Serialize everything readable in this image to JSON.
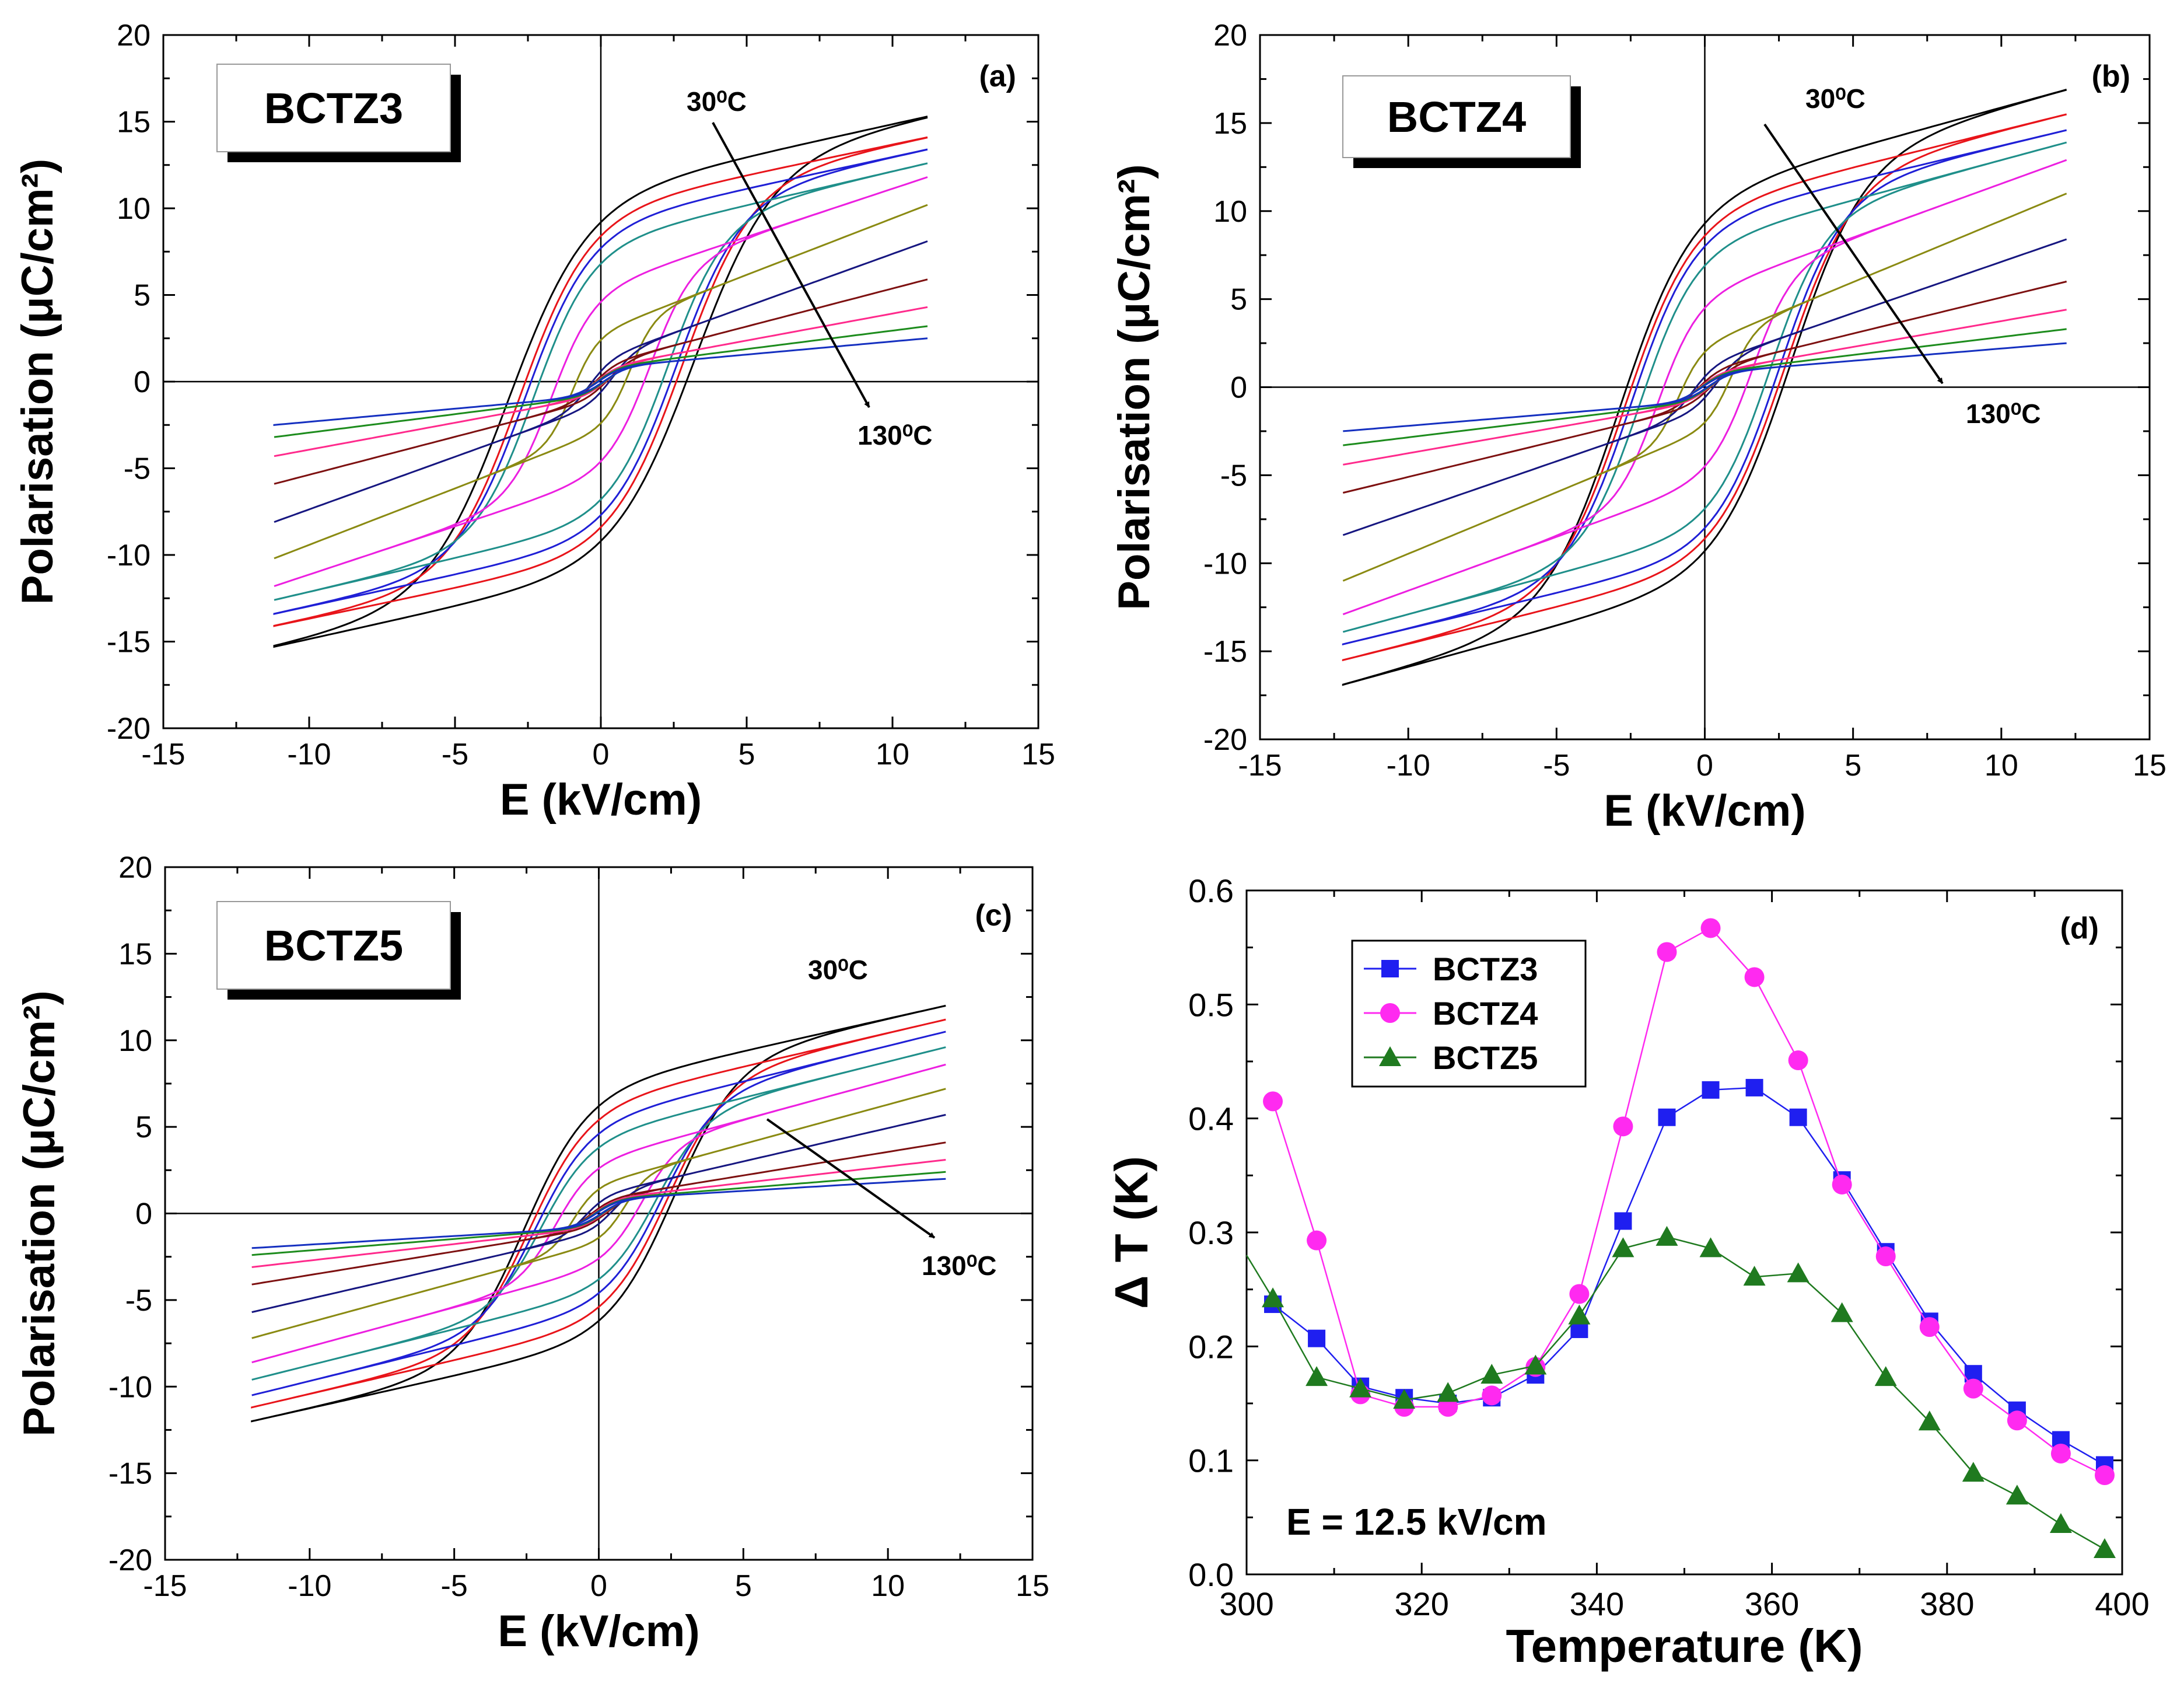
{
  "chart_data": [
    {
      "panel": "a",
      "type": "line",
      "panel_label": "(a)",
      "sample_label": "BCTZ3",
      "xlabel": "E (kV/cm)",
      "ylabel": "Polarisation (μC/cm²)",
      "xlim": [
        -15,
        15
      ],
      "ylim": [
        -20,
        20
      ],
      "x_ticks": [
        -15,
        -10,
        -5,
        0,
        5,
        10,
        15
      ],
      "y_ticks": [
        -20,
        -15,
        -10,
        -5,
        0,
        5,
        10,
        15,
        20
      ],
      "arrow_start_label": "30⁰C",
      "arrow_end_label": "130⁰C",
      "Emax": 11.2,
      "loops": [
        {
          "color": "#000000",
          "Pmax": 15.3,
          "Pr": 9.2,
          "Ec": 3.2
        },
        {
          "color": "#e8141a",
          "Pmax": 14.1,
          "Pr": 8.4,
          "Ec": 2.8
        },
        {
          "color": "#1f1fd6",
          "Pmax": 13.4,
          "Pr": 7.7,
          "Ec": 2.6
        },
        {
          "color": "#1f8f8a",
          "Pmax": 12.6,
          "Pr": 6.8,
          "Ec": 2.3
        },
        {
          "color": "#ec1fe0",
          "Pmax": 11.8,
          "Pr": 4.6,
          "Ec": 1.7
        },
        {
          "color": "#8a8a12",
          "Pmax": 10.2,
          "Pr": 2.4,
          "Ec": 1.0
        },
        {
          "color": "#161680",
          "Pmax": 8.1,
          "Pr": 0.6,
          "Ec": 0.4
        },
        {
          "color": "#7d1010",
          "Pmax": 5.9,
          "Pr": 0.3,
          "Ec": 0.25
        },
        {
          "color": "#ff2a8c",
          "Pmax": 4.3,
          "Pr": 0.2,
          "Ec": 0.2
        },
        {
          "color": "#1d8c1d",
          "Pmax": 3.2,
          "Pr": 0.15,
          "Ec": 0.15
        },
        {
          "color": "#1530c0",
          "Pmax": 2.5,
          "Pr": 0.1,
          "Ec": 0.1
        }
      ]
    },
    {
      "panel": "b",
      "type": "line",
      "panel_label": "(b)",
      "sample_label": "BCTZ4",
      "xlabel": "E (kV/cm)",
      "ylabel": "Polarisation (μC/cm²)",
      "xlim": [
        -15,
        15
      ],
      "ylim": [
        -20,
        20
      ],
      "x_ticks": [
        -15,
        -10,
        -5,
        0,
        5,
        10,
        15
      ],
      "y_ticks": [
        -20,
        -15,
        -10,
        -5,
        0,
        5,
        10,
        15,
        20
      ],
      "arrow_start_label": "30⁰C",
      "arrow_end_label": "130⁰C",
      "Emax": 12.2,
      "loops": [
        {
          "color": "#000000",
          "Pmax": 16.9,
          "Pr": 9.3,
          "Ec": 2.9
        },
        {
          "color": "#e8141a",
          "Pmax": 15.5,
          "Pr": 8.6,
          "Ec": 2.7
        },
        {
          "color": "#1f1fd6",
          "Pmax": 14.6,
          "Pr": 8.0,
          "Ec": 2.5
        },
        {
          "color": "#1f8f8a",
          "Pmax": 13.9,
          "Pr": 6.9,
          "Ec": 2.2
        },
        {
          "color": "#ec1fe0",
          "Pmax": 12.9,
          "Pr": 4.5,
          "Ec": 1.6
        },
        {
          "color": "#8a8a12",
          "Pmax": 11.0,
          "Pr": 2.0,
          "Ec": 0.9
        },
        {
          "color": "#161680",
          "Pmax": 8.4,
          "Pr": 0.6,
          "Ec": 0.4
        },
        {
          "color": "#7d1010",
          "Pmax": 6.0,
          "Pr": 0.3,
          "Ec": 0.25
        },
        {
          "color": "#ff2a8c",
          "Pmax": 4.4,
          "Pr": 0.2,
          "Ec": 0.2
        },
        {
          "color": "#1d8c1d",
          "Pmax": 3.3,
          "Pr": 0.15,
          "Ec": 0.15
        },
        {
          "color": "#1530c0",
          "Pmax": 2.5,
          "Pr": 0.1,
          "Ec": 0.1
        }
      ]
    },
    {
      "panel": "c",
      "type": "line",
      "panel_label": "(c)",
      "sample_label": "BCTZ5",
      "xlabel": "E (kV/cm)",
      "ylabel": "Polarisation (μC/cm²)",
      "xlim": [
        -15,
        15
      ],
      "ylim": [
        -20,
        20
      ],
      "x_ticks": [
        -15,
        -10,
        -5,
        0,
        5,
        10,
        15
      ],
      "y_ticks": [
        -20,
        -15,
        -10,
        -5,
        0,
        5,
        10,
        15,
        20
      ],
      "arrow_start_label": "30⁰C",
      "arrow_end_label": "130⁰C",
      "Emax": 12.0,
      "loops": [
        {
          "color": "#000000",
          "Pmax": 12.0,
          "Pr": 6.2,
          "Ec": 2.6
        },
        {
          "color": "#e8141a",
          "Pmax": 11.2,
          "Pr": 5.4,
          "Ec": 2.4
        },
        {
          "color": "#1f1fd6",
          "Pmax": 10.5,
          "Pr": 4.6,
          "Ec": 2.2
        },
        {
          "color": "#1f8f8a",
          "Pmax": 9.6,
          "Pr": 3.8,
          "Ec": 2.0
        },
        {
          "color": "#ec1fe0",
          "Pmax": 8.6,
          "Pr": 2.6,
          "Ec": 1.5
        },
        {
          "color": "#8a8a12",
          "Pmax": 7.2,
          "Pr": 1.4,
          "Ec": 0.9
        },
        {
          "color": "#161680",
          "Pmax": 5.7,
          "Pr": 0.6,
          "Ec": 0.5
        },
        {
          "color": "#7d1010",
          "Pmax": 4.1,
          "Pr": 0.3,
          "Ec": 0.3
        },
        {
          "color": "#ff2a8c",
          "Pmax": 3.1,
          "Pr": 0.2,
          "Ec": 0.2
        },
        {
          "color": "#1d8c1d",
          "Pmax": 2.4,
          "Pr": 0.15,
          "Ec": 0.15
        },
        {
          "color": "#1530c0",
          "Pmax": 2.0,
          "Pr": 0.1,
          "Ec": 0.1
        }
      ]
    },
    {
      "panel": "d",
      "type": "line",
      "panel_label": "(d)",
      "xlabel": "Temperature (K)",
      "ylabel": "Δ T (K)",
      "xlim": [
        300,
        400
      ],
      "ylim": [
        0.0,
        0.6
      ],
      "x_ticks": [
        300,
        320,
        340,
        360,
        380,
        400
      ],
      "y_ticks": [
        0.0,
        0.1,
        0.2,
        0.3,
        0.4,
        0.5,
        0.6
      ],
      "y_tick_labels": [
        "0.0",
        "0.1",
        "0.2",
        "0.3",
        "0.4",
        "0.5",
        "0.6"
      ],
      "annotation": "E = 12.5 kV/cm",
      "legend_position": "top-left",
      "x": [
        303,
        308,
        313,
        318,
        323,
        328,
        333,
        338,
        343,
        348,
        353,
        358,
        363,
        368,
        373,
        378,
        383,
        388,
        393,
        398
      ],
      "series": [
        {
          "name": "BCTZ3",
          "color": "#1f1ff0",
          "marker": "square",
          "values": [
            0.237,
            0.207,
            0.165,
            0.155,
            0.15,
            0.155,
            0.175,
            0.215,
            0.31,
            0.401,
            0.425,
            0.427,
            0.401,
            0.346,
            0.283,
            0.222,
            0.176,
            0.144,
            0.118,
            0.096
          ]
        },
        {
          "name": "BCTZ4",
          "color": "#ff2af0",
          "marker": "circle",
          "values": [
            0.415,
            0.293,
            0.158,
            0.147,
            0.147,
            0.157,
            0.182,
            0.246,
            0.393,
            0.546,
            0.567,
            0.524,
            0.451,
            0.342,
            0.279,
            0.217,
            0.163,
            0.135,
            0.106,
            0.087
          ]
        },
        {
          "name": "BCTZ5",
          "color": "#1f7a1f",
          "marker": "triangle",
          "values": [
            0.242,
            0.173,
            0.163,
            0.153,
            0.159,
            0.175,
            0.183,
            0.227,
            0.286,
            0.296,
            0.286,
            0.261,
            0.264,
            0.229,
            0.173,
            0.134,
            0.089,
            0.069,
            0.044,
            0.022
          ]
        }
      ],
      "bctz5_left_tail": {
        "x": 300,
        "value": 0.28
      }
    }
  ]
}
